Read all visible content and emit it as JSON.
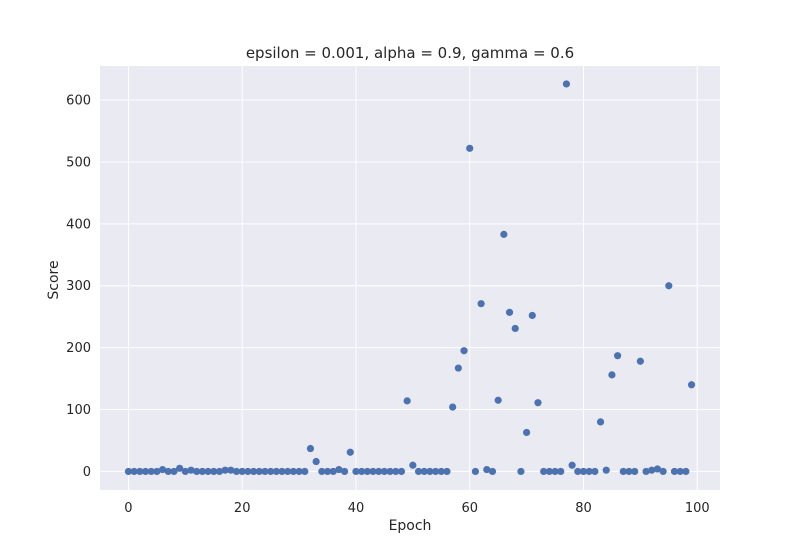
{
  "chart_data": {
    "type": "scatter",
    "title": "epsilon = 0.001, alpha = 0.9, gamma = 0.6",
    "xlabel": "Epoch",
    "ylabel": "Score",
    "xlim": [
      -5,
      104
    ],
    "ylim": [
      -30,
      655
    ],
    "xticks": [
      0,
      20,
      40,
      60,
      80,
      100
    ],
    "yticks": [
      0,
      100,
      200,
      300,
      400,
      500,
      600
    ],
    "grid": true,
    "legend": "none",
    "colors": {
      "background": "#EAEAF2",
      "grid": "#FFFFFF",
      "marker": "#4C72B0",
      "text": "#262626"
    },
    "series": [
      {
        "x": [
          0,
          1,
          2,
          3,
          4,
          5,
          6,
          7,
          8,
          9,
          10,
          11,
          12,
          13,
          14,
          15,
          16,
          17,
          18,
          19,
          20,
          21,
          22,
          23,
          24,
          25,
          26,
          27,
          28,
          29,
          30,
          31,
          32,
          33,
          34,
          35,
          36,
          37,
          38,
          39,
          40,
          41,
          42,
          43,
          44,
          45,
          46,
          47,
          48,
          49,
          50,
          51,
          52,
          53,
          54,
          55,
          56,
          57,
          58,
          59,
          60,
          61,
          62,
          63,
          64,
          65,
          66,
          67,
          68,
          69,
          70,
          71,
          72,
          73,
          74,
          75,
          76,
          77,
          78,
          79,
          80,
          81,
          82,
          83,
          84,
          85,
          86,
          87,
          88,
          89,
          90,
          91,
          92,
          93,
          94,
          95,
          96,
          97,
          98,
          99
        ],
        "y": [
          0,
          0,
          0,
          0,
          0,
          0,
          3,
          0,
          0,
          5,
          0,
          2,
          0,
          0,
          0,
          0,
          0,
          2,
          2,
          0,
          0,
          0,
          0,
          0,
          0,
          0,
          0,
          0,
          0,
          0,
          0,
          0,
          37,
          16,
          0,
          0,
          0,
          3,
          0,
          31,
          0,
          0,
          0,
          0,
          0,
          0,
          0,
          0,
          0,
          114,
          10,
          0,
          0,
          0,
          0,
          0,
          0,
          104,
          167,
          195,
          522,
          0,
          271,
          3,
          0,
          115,
          383,
          257,
          231,
          0,
          63,
          252,
          111,
          0,
          0,
          0,
          0,
          626,
          10,
          0,
          0,
          0,
          0,
          80,
          2,
          156,
          187,
          0,
          0,
          0,
          178,
          0,
          2,
          4,
          0,
          300,
          0,
          0,
          0,
          140
        ]
      }
    ]
  }
}
